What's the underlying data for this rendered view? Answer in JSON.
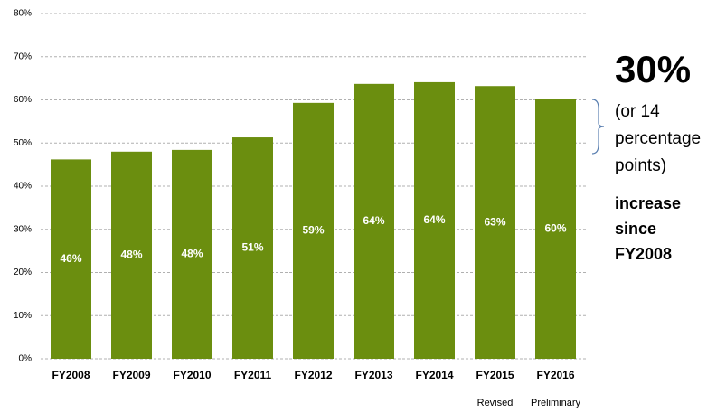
{
  "chart_data": {
    "type": "bar",
    "categories": [
      "FY2008",
      "FY2009",
      "FY2010",
      "FY2011",
      "FY2012",
      "FY2013",
      "FY2014",
      "FY2015",
      "FY2016"
    ],
    "values": [
      46.2,
      48,
      48.4,
      51.3,
      59.3,
      63.7,
      64.1,
      63.2,
      60.2
    ],
    "value_labels": [
      "46%",
      "48%",
      "48%",
      "51%",
      "59%",
      "64%",
      "64%",
      "63%",
      "60%"
    ],
    "category_notes": [
      null,
      null,
      null,
      null,
      null,
      null,
      null,
      "Revised",
      "Preliminary"
    ],
    "color": "#6b8e0f",
    "ylim": [
      0,
      80
    ],
    "yticks": [
      {
        "value": 0,
        "label": "0%"
      },
      {
        "value": 10,
        "label": "10%"
      },
      {
        "value": 20,
        "label": "20%"
      },
      {
        "value": 30,
        "label": "30%"
      },
      {
        "value": 40,
        "label": "40%"
      },
      {
        "value": 50,
        "label": "50%"
      },
      {
        "value": 60,
        "label": "60%"
      },
      {
        "value": 70,
        "label": "70%"
      },
      {
        "value": 80,
        "label": "80%"
      }
    ],
    "grid": true,
    "annotation": {
      "highlight": "30%",
      "detail": [
        "(or 14",
        "percentage",
        "points)"
      ],
      "conclusion": [
        "increase",
        "since",
        "FY2008"
      ]
    }
  }
}
